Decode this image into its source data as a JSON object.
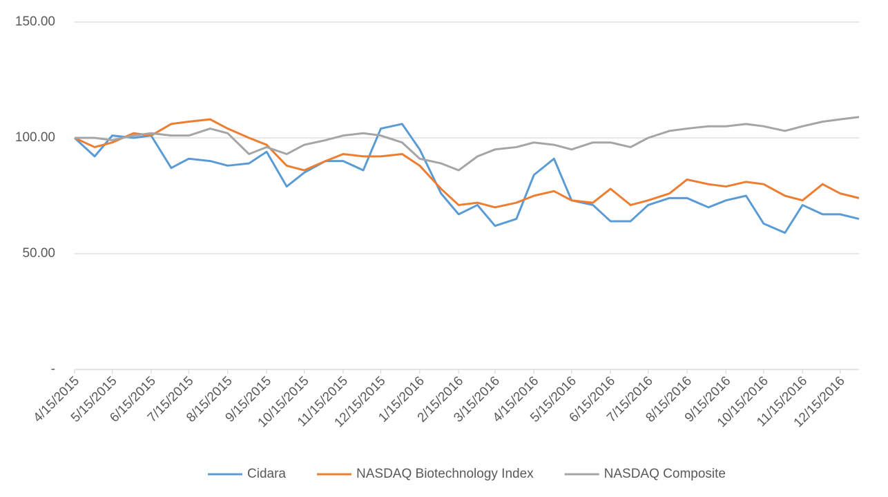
{
  "chart_data": {
    "type": "line",
    "x": [
      "4/15/2015",
      "5/1/2015",
      "5/15/2015",
      "6/1/2015",
      "6/15/2015",
      "7/1/2015",
      "7/15/2015",
      "8/1/2015",
      "8/15/2015",
      "9/1/2015",
      "9/15/2015",
      "10/1/2015",
      "10/15/2015",
      "11/1/2015",
      "11/15/2015",
      "12/1/2015",
      "12/15/2015",
      "1/1/2016",
      "1/15/2016",
      "2/1/2016",
      "2/15/2016",
      "3/1/2016",
      "3/15/2016",
      "4/1/2016",
      "4/15/2016",
      "5/1/2016",
      "5/15/2016",
      "6/1/2016",
      "6/15/2016",
      "7/1/2016",
      "7/15/2016",
      "8/1/2016",
      "8/15/2016",
      "9/1/2016",
      "9/15/2016",
      "10/1/2016",
      "10/15/2016",
      "11/1/2016",
      "11/15/2016",
      "12/1/2016",
      "12/15/2016",
      "12/30/2016"
    ],
    "series": [
      {
        "name": "Cidara",
        "color": "#5b9bd5",
        "values": [
          100,
          92,
          101,
          100,
          101,
          87,
          91,
          90,
          88,
          89,
          94,
          79,
          85,
          90,
          90,
          86,
          104,
          106,
          95,
          76,
          67,
          71,
          62,
          65,
          84,
          91,
          73,
          71,
          64,
          64,
          71,
          74,
          74,
          70,
          73,
          75,
          63,
          59,
          71,
          67,
          67,
          65
        ]
      },
      {
        "name": "NASDAQ Biotechnology Index",
        "color": "#ed7d31",
        "values": [
          100,
          96,
          98,
          102,
          101,
          106,
          107,
          108,
          104,
          100,
          97,
          88,
          86,
          90,
          93,
          92,
          92,
          93,
          88,
          78,
          71,
          72,
          70,
          72,
          75,
          77,
          73,
          72,
          78,
          71,
          73,
          76,
          82,
          80,
          79,
          81,
          80,
          75,
          73,
          80,
          76,
          74
        ]
      },
      {
        "name": "NASDAQ Composite",
        "color": "#a5a5a5",
        "values": [
          100,
          100,
          99,
          101,
          102,
          101,
          101,
          104,
          102,
          93,
          96,
          93,
          97,
          99,
          101,
          102,
          101,
          98,
          91,
          89,
          86,
          92,
          95,
          96,
          98,
          97,
          95,
          98,
          98,
          96,
          100,
          103,
          104,
          105,
          105,
          106,
          105,
          103,
          105,
          107,
          108,
          109
        ]
      }
    ],
    "xlim": [
      "4/15/2015",
      "12/30/2016"
    ],
    "xticks": [
      "4/15/2015",
      "5/15/2015",
      "6/15/2015",
      "7/15/2015",
      "8/15/2015",
      "9/15/2015",
      "10/15/2015",
      "11/15/2015",
      "12/15/2015",
      "1/15/2016",
      "2/15/2016",
      "3/15/2016",
      "4/15/2016",
      "5/15/2016",
      "6/15/2016",
      "7/15/2016",
      "8/15/2016",
      "9/15/2016",
      "10/15/2016",
      "11/15/2016",
      "12/15/2016"
    ],
    "ylim": [
      0,
      150
    ],
    "yticks": [
      {
        "value": 0,
        "label": "-"
      },
      {
        "value": 50,
        "label": "50.00"
      },
      {
        "value": 100,
        "label": "100.00"
      },
      {
        "value": 150,
        "label": "150.00"
      }
    ],
    "grid": true,
    "legend": "bottom"
  }
}
